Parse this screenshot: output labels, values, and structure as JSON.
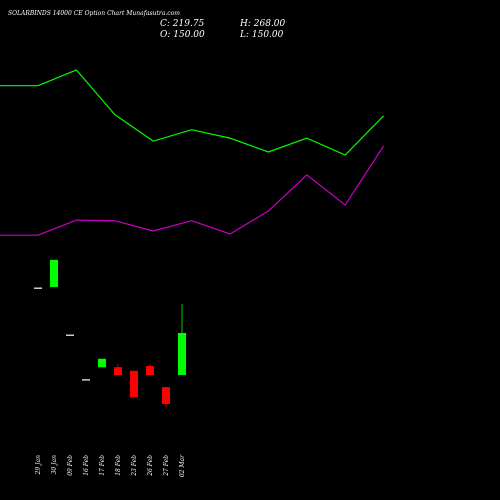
{
  "chart_data": {
    "type": "candlestick",
    "title": "SOLARBINDS 14000  CE Option  Chart Munafasutra.com",
    "ohlc_labels": [
      "C: 219.75",
      "H: 268.00",
      "O: 150.00",
      "L: 150.00"
    ],
    "categories": [
      "29 Jan",
      "30 Jan",
      "09 Feb",
      "16 Feb",
      "17 Feb",
      "18 Feb",
      "23 Feb",
      "26 Feb",
      "27 Feb",
      "02 Mar"
    ],
    "open": [
      294,
      296,
      216,
      142,
      163,
      163,
      157,
      165,
      130,
      150
    ],
    "high": [
      294,
      341,
      216,
      142,
      177,
      168,
      157,
      168,
      130,
      268
    ],
    "low": [
      294,
      296,
      216,
      142,
      163,
      150,
      113,
      150,
      97,
      150
    ],
    "close": [
      294,
      341,
      216,
      142,
      177,
      150,
      113,
      150,
      102,
      219.75
    ],
    "up_color": "#00ff00",
    "down_color": "#ff0000",
    "series": [
      {
        "color": "#00ff00",
        "values": [
          630,
          656,
          582,
          538,
          557,
          543,
          520,
          543,
          515,
          580
        ]
      },
      {
        "color": "#cc00cc",
        "values": [
          382,
          407,
          406,
          389,
          406,
          384,
          422,
          482,
          432,
          530
        ]
      }
    ]
  }
}
